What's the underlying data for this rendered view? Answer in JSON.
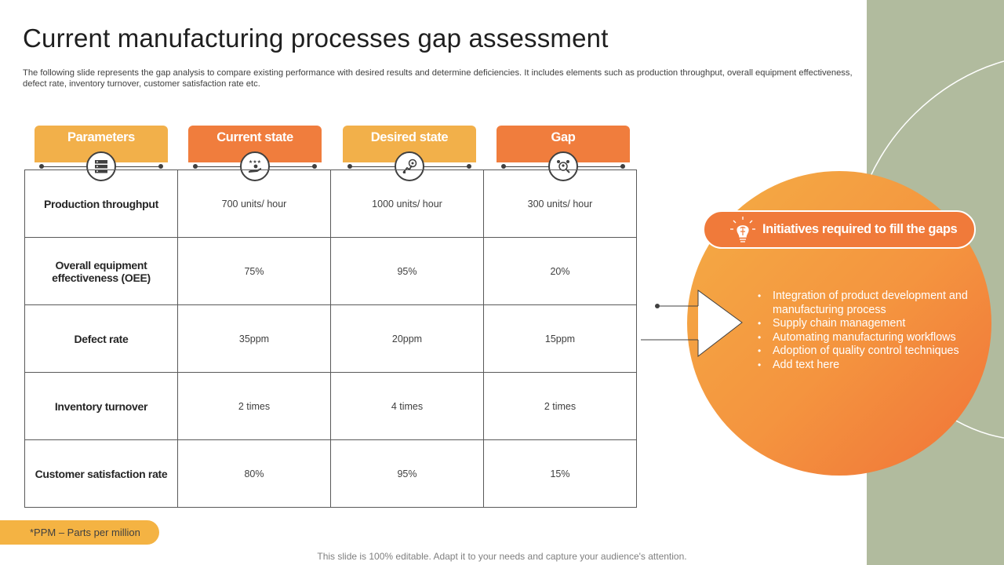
{
  "slide": {
    "title": "Current manufacturing processes gap assessment",
    "subtitle": "The following slide represents the gap analysis to compare existing performance with desired results and determine deficiencies. It includes elements such as production throughput, overall equipment effectiveness, defect rate, inventory turnover,  customer satisfaction rate etc."
  },
  "table": {
    "headers": [
      {
        "label": "Parameters",
        "icon": "server-icon"
      },
      {
        "label": "Current state",
        "icon": "hand-stars-icon"
      },
      {
        "label": "Desired state",
        "icon": "target-growth-icon"
      },
      {
        "label": "Gap",
        "icon": "people-search-icon"
      }
    ],
    "rows": [
      {
        "parameter": "Production throughput",
        "current": "700 units/ hour",
        "desired": "1000 units/ hour",
        "gap": "300 units/ hour"
      },
      {
        "parameter": "Overall equipment effectiveness (OEE)",
        "current": "75%",
        "desired": "95%",
        "gap": "20%"
      },
      {
        "parameter": "Defect rate",
        "current": "35ppm",
        "desired": "20ppm",
        "gap": "15ppm"
      },
      {
        "parameter": "Inventory turnover",
        "current": "2 times",
        "desired": "4 times",
        "gap": "2 times"
      },
      {
        "parameter": "Customer satisfaction rate",
        "current": "80%",
        "desired": "95%",
        "gap": "15%"
      }
    ]
  },
  "initiatives": {
    "title": "Initiatives required to fill the gaps",
    "icon": "lightbulb-brain-icon",
    "items": [
      "Integration of product development and manufacturing process",
      "Supply chain management",
      "Automating manufacturing workflows",
      "Adoption of quality control techniques",
      "Add text here"
    ]
  },
  "footnote": "*PPM – Parts per million",
  "footer": "This slide is 100% editable. Adapt it to your needs and capture your audience's attention.",
  "colors": {
    "yellow": "#f2b04a",
    "orange": "#f07d3d",
    "sage": "#b1bb9e",
    "border": "#595959"
  }
}
